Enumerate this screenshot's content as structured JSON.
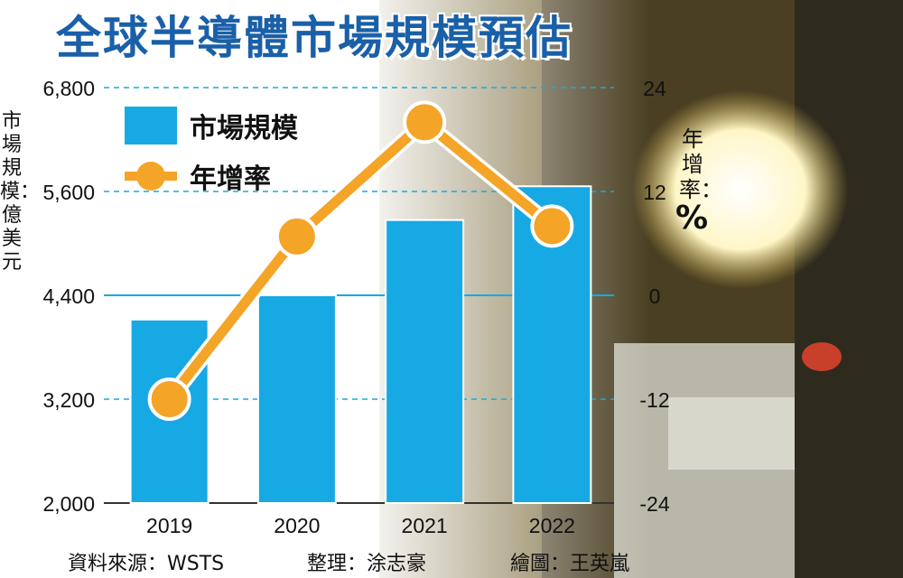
{
  "title": "全球半導體市場規模預估",
  "footer": {
    "source": "資料來源：WSTS",
    "compiler": "整理：涂志豪",
    "illustrator": "繪圖：王英嵐"
  },
  "legend": {
    "bar_label": "市場規模",
    "line_label": "年增率"
  },
  "colors": {
    "bar": "#17a9e3",
    "line": "#f4a427",
    "grid": "#17a9e3",
    "title": "#1a60a8"
  },
  "chart_data": {
    "type": "bar",
    "title": "全球半導體市場規模預估",
    "categories": [
      "2019",
      "2020",
      "2021",
      "2022"
    ],
    "series": [
      {
        "name": "市場規模",
        "type": "bar",
        "axis": "left",
        "values": [
          4120,
          4400,
          5270,
          5660
        ]
      },
      {
        "name": "年增率",
        "type": "line",
        "axis": "right",
        "values": [
          -12.0,
          6.8,
          20.0,
          8.0
        ]
      }
    ],
    "ylabel": "市場規模：億美元",
    "ylabel_right": "年增率：%",
    "ylim": [
      2000,
      6800
    ],
    "ylim_right": [
      -24,
      24
    ],
    "yticks": [
      "2,000",
      "3,200",
      "4,400",
      "5,600",
      "6,800"
    ],
    "yticks_right": [
      "-24",
      "-12",
      "0",
      "12",
      "24"
    ],
    "grid": true,
    "legend_position": "top-left"
  }
}
